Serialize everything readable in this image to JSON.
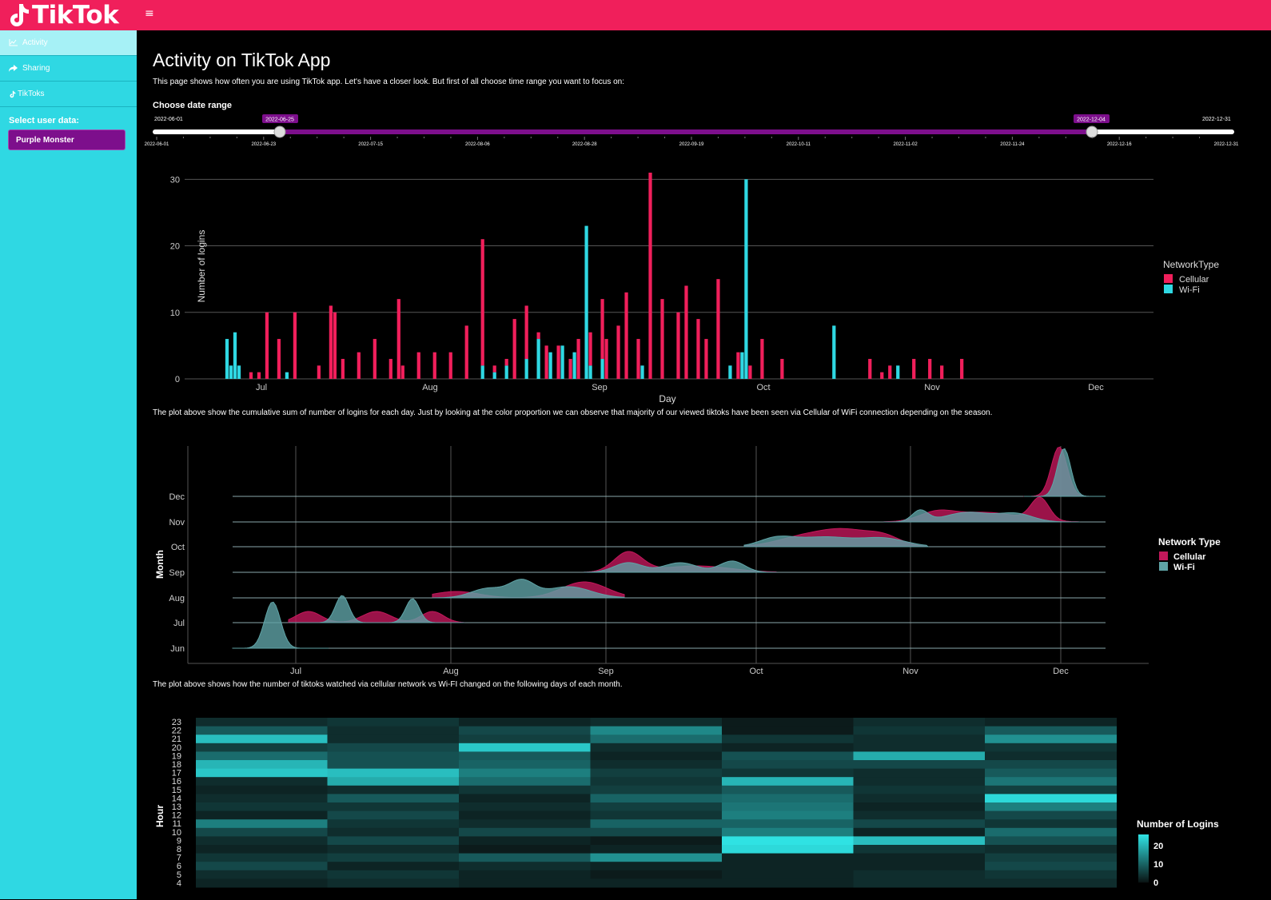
{
  "app": {
    "name": "TikTok"
  },
  "sidebar": {
    "items": [
      {
        "label": "Activity",
        "icon": "line-chart-icon"
      },
      {
        "label": "Sharing",
        "icon": "share-icon"
      },
      {
        "label": "TikToks",
        "icon": "tiktok-icon"
      }
    ],
    "select_label": "Select user data:",
    "selected_user": "Purple Monster"
  },
  "page": {
    "title": "Activity on TikTok App",
    "intro": "This page shows how often you are using TikTok app. Let's have a closer look. But first of all choose time range you want to focus on:",
    "date_range_label": "Choose date range",
    "caption1": "The plot above show the cumulative sum of number of logins for each day. Just by looking at the color proportion we can observe that majority of our viewed tiktoks have been seen via Cellular of WiFi connection depending on the season.",
    "caption2": "The plot above shows how the number of tiktoks watched via cellular network vs Wi-FI changed on the following days of each month."
  },
  "slider": {
    "min": "2022-06-01",
    "max": "2022-12-31",
    "from": "2022-06-25",
    "to": "2022-12-04",
    "ticks": [
      "2022-06-01",
      "2022-06-23",
      "2022-07-15",
      "2022-08-06",
      "2022-08-28",
      "2022-09-19",
      "2022-10-11",
      "2022-11-02",
      "2022-11-24",
      "2022-12-16",
      "2022-12-31"
    ],
    "color": "#7d0f8c"
  },
  "colors": {
    "cellular": "#f01f5b",
    "wifi": "#2fd8e3",
    "ridge_cellular": "#c2185b",
    "ridge_wifi": "#5fa3a6"
  },
  "chart_data": [
    {
      "type": "bar",
      "stacked": true,
      "xlabel": "Day",
      "ylabel": "Number of logins",
      "ylim": [
        0,
        31
      ],
      "yticks": [
        0,
        10,
        20,
        30
      ],
      "grid": true,
      "legend_title": "NetworkType",
      "legend_position": "right",
      "x_axis_ticks": [
        "Jul",
        "Aug",
        "Sep",
        "Oct",
        "Nov",
        "Dec"
      ],
      "series": [
        {
          "name": "Cellular",
          "values": [
            0,
            0,
            0,
            0,
            0,
            0,
            1,
            0,
            1,
            0,
            10,
            0,
            0,
            6,
            0,
            0,
            0,
            10,
            0,
            0,
            0,
            0,
            0,
            2,
            0,
            0,
            11,
            10,
            0,
            3,
            0,
            0,
            0,
            4,
            0,
            0,
            0,
            6,
            0,
            0,
            0,
            3,
            0,
            12,
            2,
            0,
            0,
            0,
            4,
            0,
            0,
            0,
            4,
            0,
            0,
            0,
            4,
            0,
            0,
            0,
            8,
            0,
            0,
            0,
            19,
            0,
            0,
            1,
            0,
            0,
            1,
            0,
            9,
            0,
            0,
            8,
            0,
            0,
            1,
            0,
            5,
            0,
            0,
            5,
            0,
            0,
            3,
            0,
            6,
            0,
            0,
            5,
            0,
            0,
            9,
            6,
            0,
            0,
            8,
            0,
            13,
            0,
            0,
            6,
            0,
            0,
            31,
            0,
            0,
            12,
            0,
            0,
            0,
            10,
            0,
            14,
            0,
            0,
            9,
            0,
            6,
            0,
            0,
            15,
            0,
            0,
            0,
            0,
            4,
            0,
            0,
            2,
            0,
            0,
            6,
            0,
            0,
            0,
            0,
            3,
            0,
            0,
            0,
            0,
            0,
            0,
            0,
            0,
            0,
            0,
            0,
            0,
            0,
            0,
            0,
            0,
            0,
            0,
            0,
            0,
            0,
            3,
            0,
            0,
            1,
            0,
            2,
            0,
            0,
            0,
            0,
            0,
            3,
            0,
            0,
            0,
            3,
            0,
            0,
            2,
            0,
            0,
            0,
            0,
            3,
            0,
            0,
            0,
            0,
            0,
            0,
            0,
            0,
            0,
            0,
            0,
            0,
            0,
            0,
            0,
            0,
            0,
            0,
            0,
            0,
            0,
            0,
            0,
            0,
            0,
            0,
            0,
            0,
            0,
            0,
            0,
            0,
            0,
            0,
            0,
            0
          ]
        },
        {
          "name": "Wi-Fi",
          "values": [
            6,
            2,
            7,
            2,
            0,
            0,
            0,
            0,
            0,
            0,
            0,
            0,
            0,
            0,
            0,
            1,
            0,
            0,
            0,
            0,
            0,
            0,
            0,
            0,
            0,
            0,
            0,
            0,
            0,
            0,
            0,
            0,
            0,
            0,
            0,
            0,
            0,
            0,
            0,
            0,
            0,
            0,
            0,
            0,
            0,
            0,
            0,
            0,
            0,
            0,
            0,
            0,
            0,
            0,
            0,
            0,
            0,
            0,
            0,
            0,
            0,
            0,
            0,
            0,
            2,
            0,
            0,
            1,
            0,
            0,
            2,
            0,
            0,
            0,
            0,
            3,
            0,
            0,
            6,
            0,
            0,
            4,
            0,
            0,
            5,
            0,
            0,
            4,
            0,
            0,
            23,
            2,
            0,
            0,
            3,
            0,
            0,
            0,
            0,
            0,
            0,
            0,
            0,
            0,
            2,
            0,
            0,
            0,
            0,
            0,
            0,
            0,
            0,
            0,
            0,
            0,
            0,
            0,
            0,
            0,
            0,
            0,
            0,
            0,
            0,
            0,
            2,
            0,
            0,
            4,
            30,
            0,
            0,
            0,
            0,
            0,
            0,
            0,
            0,
            0,
            0,
            0,
            0,
            0,
            0,
            0,
            0,
            0,
            0,
            0,
            0,
            0,
            8,
            0,
            0,
            0,
            0,
            0,
            0,
            0,
            0,
            0,
            0,
            0,
            0,
            0,
            0,
            0,
            2,
            0,
            0,
            0,
            0,
            0,
            0,
            0,
            0,
            0,
            0,
            0,
            0,
            0,
            0,
            0,
            0,
            0,
            0,
            0,
            0,
            0,
            0,
            0,
            0,
            0,
            0,
            0,
            0,
            0,
            0,
            0,
            0,
            0,
            0,
            0,
            0,
            0,
            0,
            0,
            0,
            0,
            0,
            0,
            0,
            0,
            0,
            0,
            0,
            0,
            0,
            0,
            0,
            0,
            0,
            0
          ]
        }
      ]
    },
    {
      "type": "area",
      "subtype": "ridgeline",
      "xlabel": "",
      "ylabel": "Month",
      "months": [
        "Jun",
        "Jul",
        "Aug",
        "Sep",
        "Oct",
        "Nov",
        "Dec"
      ],
      "x_axis_ticks": [
        "Jul",
        "Aug",
        "Sep",
        "Oct",
        "Nov",
        "Dec"
      ],
      "legend_title": "Network Type",
      "legend_entries": [
        "Cellular",
        "Wi-Fi"
      ],
      "legend_position": "right",
      "grid": true
    },
    {
      "type": "heatmap",
      "ylabel": "Hour",
      "yticks": [
        "23",
        "22",
        "21",
        "20",
        "19",
        "18",
        "17",
        "16",
        "15",
        "14",
        "13",
        "12",
        "11",
        "10",
        "9",
        "8",
        "7",
        "6",
        "5",
        "4"
      ],
      "colorbar_title": "Number of Logins",
      "colorbar_ticks": [
        "20",
        "10",
        "0"
      ]
    }
  ]
}
